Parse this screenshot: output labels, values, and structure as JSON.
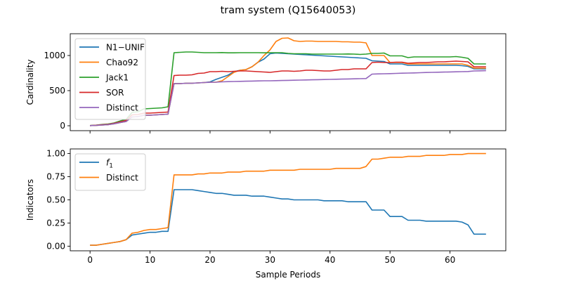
{
  "title": "tram system (Q15640053)",
  "chart_data": [
    {
      "type": "line",
      "ylabel": "Cardinality",
      "xlim": [
        -3.3,
        69.3
      ],
      "ylim": [
        -70,
        1310
      ],
      "xticks": [
        0,
        10,
        20,
        30,
        40,
        50,
        60
      ],
      "yticks": [
        0,
        500,
        1000
      ],
      "ytick_labels": [
        "0",
        "500",
        "1000"
      ],
      "legend_position": "upper-left",
      "x": [
        0,
        1,
        2,
        3,
        4,
        5,
        6,
        7,
        8,
        9,
        10,
        11,
        12,
        13,
        14,
        15,
        16,
        17,
        18,
        19,
        20,
        21,
        22,
        23,
        24,
        25,
        26,
        27,
        28,
        29,
        30,
        31,
        32,
        33,
        34,
        35,
        36,
        37,
        38,
        39,
        40,
        41,
        42,
        43,
        44,
        45,
        46,
        47,
        48,
        49,
        50,
        51,
        52,
        53,
        54,
        55,
        56,
        57,
        58,
        59,
        60,
        61,
        62,
        63,
        64,
        65,
        66
      ],
      "series": [
        {
          "name": "N1−UNIF",
          "color": "#1f77b4",
          "values": [
            2,
            5,
            10,
            15,
            28,
            45,
            60,
            125,
            130,
            150,
            150,
            155,
            160,
            165,
            600,
            600,
            605,
            605,
            610,
            615,
            625,
            660,
            690,
            720,
            770,
            790,
            800,
            840,
            905,
            950,
            1025,
            1035,
            1030,
            1025,
            1020,
            1015,
            1010,
            1005,
            1000,
            995,
            990,
            985,
            980,
            975,
            970,
            965,
            960,
            925,
            920,
            915,
            880,
            880,
            880,
            860,
            860,
            860,
            860,
            860,
            860,
            860,
            860,
            860,
            855,
            845,
            810,
            810,
            810
          ]
        },
        {
          "name": "Chao92",
          "color": "#ff7f0e",
          "values": [
            2,
            5,
            10,
            15,
            28,
            45,
            60,
            125,
            130,
            150,
            150,
            155,
            160,
            165,
            600,
            600,
            605,
            605,
            610,
            615,
            620,
            620,
            640,
            700,
            760,
            790,
            800,
            840,
            905,
            1000,
            1080,
            1200,
            1245,
            1250,
            1210,
            1200,
            1205,
            1205,
            1200,
            1200,
            1200,
            1200,
            1195,
            1195,
            1190,
            1190,
            1180,
            1000,
            1000,
            1000,
            900,
            900,
            900,
            880,
            880,
            880,
            880,
            880,
            880,
            880,
            880,
            880,
            880,
            860,
            820,
            820,
            820
          ]
        },
        {
          "name": "Jack1",
          "color": "#2ca02c",
          "values": [
            3,
            8,
            18,
            25,
            40,
            68,
            90,
            190,
            200,
            240,
            245,
            250,
            255,
            270,
            1040,
            1045,
            1050,
            1050,
            1045,
            1040,
            1040,
            1040,
            1042,
            1038,
            1038,
            1040,
            1040,
            1040,
            1040,
            1038,
            1040,
            1040,
            1040,
            1030,
            1025,
            1025,
            1025,
            1020,
            1020,
            1020,
            1020,
            1020,
            1020,
            1022,
            1020,
            1015,
            1020,
            1030,
            1030,
            1035,
            995,
            995,
            995,
            970,
            980,
            980,
            980,
            980,
            980,
            980,
            980,
            985,
            975,
            960,
            880,
            880,
            880
          ]
        },
        {
          "name": "SOR",
          "color": "#d62728",
          "values": [
            2,
            7,
            14,
            20,
            35,
            55,
            75,
            155,
            160,
            180,
            180,
            185,
            190,
            195,
            715,
            720,
            720,
            725,
            745,
            750,
            770,
            770,
            775,
            770,
            775,
            780,
            780,
            775,
            770,
            765,
            760,
            770,
            780,
            780,
            775,
            780,
            790,
            790,
            785,
            780,
            780,
            790,
            800,
            800,
            810,
            810,
            810,
            900,
            905,
            900,
            900,
            905,
            905,
            890,
            895,
            900,
            900,
            905,
            910,
            910,
            915,
            920,
            915,
            910,
            840,
            840,
            840
          ]
        },
        {
          "name": "Distinct",
          "color": "#9467bd",
          "values": [
            2,
            5,
            10,
            15,
            28,
            45,
            60,
            125,
            130,
            150,
            150,
            155,
            160,
            165,
            600,
            600,
            605,
            605,
            610,
            615,
            618,
            620,
            625,
            628,
            630,
            632,
            634,
            636,
            638,
            640,
            640,
            642,
            644,
            646,
            648,
            650,
            652,
            654,
            656,
            658,
            660,
            662,
            664,
            666,
            668,
            670,
            672,
            735,
            738,
            740,
            742,
            745,
            748,
            750,
            752,
            755,
            758,
            760,
            762,
            764,
            766,
            768,
            770,
            772,
            780,
            782,
            784
          ]
        }
      ]
    },
    {
      "type": "line",
      "xlabel": "Sample Periods",
      "ylabel": "Indicators",
      "xlim": [
        -3.3,
        69.3
      ],
      "ylim": [
        -0.05,
        1.05
      ],
      "xticks": [
        0,
        10,
        20,
        30,
        40,
        50,
        60
      ],
      "yticks": [
        0,
        0.25,
        0.5,
        0.75,
        1.0
      ],
      "ytick_labels": [
        "0.00",
        "0.25",
        "0.50",
        "0.75",
        "1.00"
      ],
      "legend_position": "upper-left",
      "x": [
        0,
        1,
        2,
        3,
        4,
        5,
        6,
        7,
        8,
        9,
        10,
        11,
        12,
        13,
        14,
        15,
        16,
        17,
        18,
        19,
        20,
        21,
        22,
        23,
        24,
        25,
        26,
        27,
        28,
        29,
        30,
        31,
        32,
        33,
        34,
        35,
        36,
        37,
        38,
        39,
        40,
        41,
        42,
        43,
        44,
        45,
        46,
        47,
        48,
        49,
        50,
        51,
        52,
        53,
        54,
        55,
        56,
        57,
        58,
        59,
        60,
        61,
        62,
        63,
        64,
        65,
        66
      ],
      "series": [
        {
          "name": "f1",
          "color": "#1f77b4",
          "values": [
            0.01,
            0.01,
            0.02,
            0.03,
            0.04,
            0.05,
            0.07,
            0.12,
            0.13,
            0.14,
            0.15,
            0.15,
            0.16,
            0.16,
            0.61,
            0.61,
            0.61,
            0.61,
            0.6,
            0.59,
            0.58,
            0.57,
            0.57,
            0.56,
            0.55,
            0.55,
            0.55,
            0.54,
            0.54,
            0.54,
            0.53,
            0.52,
            0.51,
            0.51,
            0.5,
            0.5,
            0.5,
            0.5,
            0.5,
            0.49,
            0.49,
            0.49,
            0.49,
            0.48,
            0.48,
            0.48,
            0.48,
            0.39,
            0.39,
            0.39,
            0.32,
            0.32,
            0.32,
            0.28,
            0.28,
            0.28,
            0.27,
            0.27,
            0.27,
            0.27,
            0.27,
            0.27,
            0.26,
            0.23,
            0.13,
            0.13,
            0.13
          ]
        },
        {
          "name": "Distinct",
          "color": "#ff7f0e",
          "values": [
            0.01,
            0.01,
            0.02,
            0.03,
            0.04,
            0.05,
            0.07,
            0.14,
            0.15,
            0.17,
            0.18,
            0.18,
            0.19,
            0.2,
            0.77,
            0.77,
            0.77,
            0.77,
            0.78,
            0.78,
            0.79,
            0.79,
            0.79,
            0.8,
            0.8,
            0.8,
            0.81,
            0.81,
            0.81,
            0.81,
            0.82,
            0.82,
            0.82,
            0.82,
            0.82,
            0.83,
            0.83,
            0.83,
            0.83,
            0.83,
            0.83,
            0.84,
            0.84,
            0.84,
            0.84,
            0.84,
            0.86,
            0.94,
            0.94,
            0.95,
            0.96,
            0.96,
            0.96,
            0.97,
            0.97,
            0.97,
            0.98,
            0.98,
            0.98,
            0.98,
            0.99,
            0.99,
            0.99,
            1.0,
            1.0,
            1.0,
            1.0
          ]
        }
      ]
    }
  ]
}
